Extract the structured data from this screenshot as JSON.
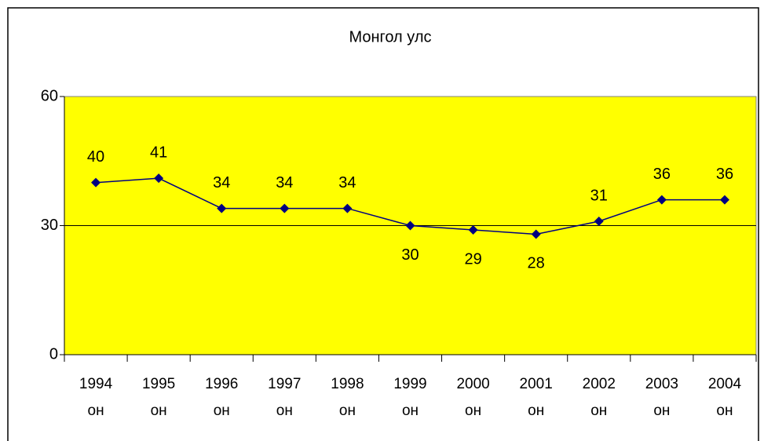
{
  "chart_data": {
    "type": "line",
    "title": "Монгол улс",
    "categories": [
      "1994 он",
      "1995 он",
      "1996 он",
      "1997 он",
      "1998 он",
      "1999 он",
      "2000 он",
      "2001 он",
      "2002 он",
      "2003 он",
      "2004 он"
    ],
    "series": [
      {
        "name": "Монгол улс",
        "color": "#000080",
        "values": [
          40,
          41,
          34,
          34,
          34,
          30,
          29,
          28,
          31,
          36,
          36
        ]
      }
    ],
    "ylim": [
      0,
      60
    ],
    "yticks": [
      0,
      30,
      60
    ],
    "grid": true,
    "plot_background": "#ffff00"
  }
}
